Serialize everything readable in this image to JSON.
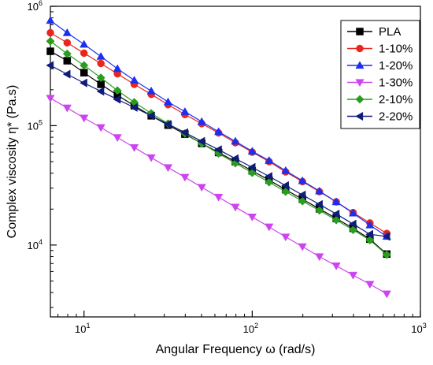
{
  "chart_data": {
    "type": "line",
    "xscale": "log",
    "yscale": "log",
    "xlim": [
      6.31,
      1000
    ],
    "ylim": [
      2500,
      1000000
    ],
    "xlabel": "Angular Frequency ω (rad/s)",
    "ylabel": "Complex viscosity η* (Pa.s)",
    "x_ticks": [
      {
        "value": 10,
        "base": "10",
        "exp": "1"
      },
      {
        "value": 100,
        "base": "10",
        "exp": "2"
      },
      {
        "value": 1000,
        "base": "10",
        "exp": "3"
      }
    ],
    "y_ticks": [
      {
        "value": 10000,
        "base": "10",
        "exp": "4"
      },
      {
        "value": 100000,
        "base": "10",
        "exp": "5"
      },
      {
        "value": 1000000,
        "base": "10",
        "exp": "6"
      }
    ],
    "legend_position": "top-right",
    "x": [
      6.31,
      7.94,
      10,
      12.6,
      15.8,
      19.9,
      25.1,
      31.6,
      39.8,
      50.1,
      63.1,
      79.4,
      100,
      126,
      158,
      199,
      251,
      316,
      398,
      501,
      631
    ],
    "series": [
      {
        "name": "PLA",
        "marker": "square",
        "color": "#000000",
        "values": [
          420000,
          350000,
          278000,
          222000,
          180000,
          147000,
          121000,
          101000,
          85000,
          71000,
          59600,
          50000,
          41800,
          35000,
          29100,
          24200,
          20100,
          16700,
          13800,
          11200,
          8400
        ]
      },
      {
        "name": "1-10%",
        "marker": "circle",
        "color": "#e8261e",
        "values": [
          600000,
          495000,
          405000,
          332000,
          272000,
          222000,
          183000,
          150000,
          124000,
          104000,
          87000,
          72000,
          60000,
          50000,
          41000,
          34000,
          28000,
          23000,
          18700,
          15300,
          12500
        ]
      },
      {
        "name": "1-20%",
        "marker": "triangle-up",
        "color": "#1c2ff0",
        "values": [
          760000,
          600000,
          480000,
          380000,
          300000,
          240000,
          195000,
          158000,
          131000,
          108000,
          89000,
          74000,
          61000,
          51000,
          42000,
          34500,
          28300,
          23000,
          18500,
          14700,
          11800
        ]
      },
      {
        "name": "1-30%",
        "marker": "triangle-down",
        "color": "#cc44ee",
        "values": [
          170000,
          141000,
          116000,
          96500,
          79600,
          65600,
          54000,
          44600,
          37000,
          30500,
          25200,
          20800,
          17200,
          14200,
          11700,
          9700,
          8000,
          6700,
          5600,
          4700,
          3900
        ]
      },
      {
        "name": "2-10%",
        "marker": "diamond",
        "color": "#2a9d1f",
        "values": [
          510000,
          400000,
          320000,
          252000,
          197000,
          157000,
          127000,
          104000,
          86000,
          71000,
          58500,
          48500,
          40300,
          33600,
          28000,
          23300,
          19500,
          16200,
          13400,
          11000,
          8300
        ]
      },
      {
        "name": "2-20%",
        "marker": "triangle-left",
        "color": "#101c7a",
        "values": [
          320000,
          270000,
          228000,
          194000,
          166000,
          142000,
          121000,
          103000,
          87500,
          74000,
          63000,
          53000,
          44800,
          37600,
          31500,
          26300,
          21900,
          18200,
          15000,
          12300,
          11800
        ]
      }
    ]
  }
}
